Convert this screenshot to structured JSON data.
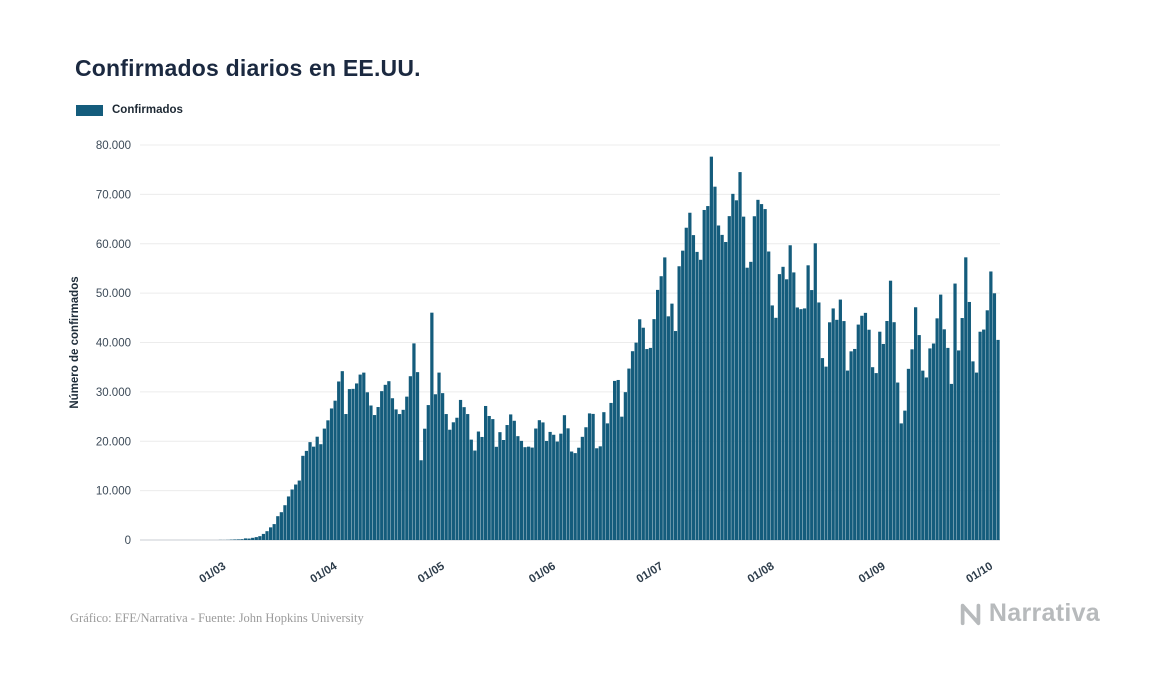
{
  "page": {
    "title": "Confirmados diarios en EE.UU.",
    "credit": "Gráfico: EFE/Narrativa - Fuente: John Hopkins University",
    "brand": "Narrativa"
  },
  "legend": {
    "label": "Confirmados"
  },
  "colors": {
    "bar": "#145c7c",
    "title": "#1b2940",
    "grid": "#ececec",
    "baseline": "#c9ced3",
    "axis": "#3c4a58",
    "credit": "#9b9b9b",
    "brand": "#b7babc"
  },
  "chart_data": {
    "type": "bar",
    "title": "Confirmados diarios en EE.UU.",
    "series_name": "Confirmados",
    "xlabel": "",
    "ylabel": "Número de confirmados",
    "x_start_date": "08/02/2020",
    "x_tick_labels": [
      "01/03",
      "01/04",
      "01/05",
      "01/06",
      "01/07",
      "01/08",
      "01/09",
      "01/10"
    ],
    "x_tick_indices": [
      22,
      53,
      83,
      114,
      144,
      175,
      206,
      236
    ],
    "y_ticks": [
      0,
      10000,
      20000,
      30000,
      40000,
      50000,
      60000,
      70000,
      80000
    ],
    "y_tick_labels": [
      "0",
      "10.000",
      "20.000",
      "30.000",
      "40.000",
      "50.000",
      "60.000",
      "70.000",
      "80.000"
    ],
    "ylim": [
      0,
      80000
    ],
    "grid": true,
    "legend_position": "top-left",
    "values": [
      0,
      0,
      0,
      0,
      0,
      0,
      0,
      0,
      0,
      0,
      0,
      0,
      0,
      0,
      0,
      0,
      0,
      0,
      0,
      0,
      0,
      0,
      24,
      19,
      34,
      77,
      111,
      129,
      162,
      326,
      294,
      441,
      583,
      778,
      1233,
      1789,
      2563,
      3223,
      4824,
      5632,
      7047,
      8821,
      10229,
      11236,
      12038,
      17050,
      18047,
      19821,
      18906,
      20921,
      19400,
      22562,
      24237,
      26641,
      28219,
      32105,
      34196,
      25513,
      30561,
      30613,
      31709,
      33502,
      33900,
      29916,
      27238,
      25306,
      26930,
      30148,
      31426,
      32165,
      28710,
      26448,
      25509,
      26366,
      29037,
      33172,
      39822,
      34000,
      16149,
      22541,
      27327,
      46042,
      29517,
      33906,
      29744,
      25509,
      22335,
      23841,
      24762,
      28369,
      26906,
      25508,
      20329,
      18117,
      21970,
      20869,
      27143,
      25115,
      24487,
      18873,
      21841,
      20254,
      23285,
      25434,
      24147,
      21030,
      20076,
      18798,
      18907,
      18721,
      22577,
      24266,
      23814,
      20058,
      21892,
      21313,
      19939,
      21540,
      25278,
      22617,
      17919,
      17598,
      18692,
      20894,
      22834,
      25641,
      25540,
      18578,
      18972,
      25890,
      23622,
      27762,
      32218,
      32411,
      24979,
      29945,
      34720,
      38237,
      39972,
      44702,
      42994,
      38673,
      38907,
      44734,
      50655,
      53426,
      57236,
      45300,
      47873,
      42320,
      55442,
      58601,
      63247,
      66281,
      61749,
      58349,
      56750,
      66842,
      67632,
      77638,
      71558,
      63698,
      61795,
      60355,
      65594,
      70106,
      68800,
      74511,
      65490,
      55148,
      56336,
      65570,
      68896,
      68032,
      67023,
      58429,
      47508,
      45001,
      53847,
      55327,
      52799,
      59692,
      54193,
      47094,
      46754,
      46906,
      55633,
      50620,
      60091,
      48109,
      36843,
      35112,
      44091,
      46901,
      44591,
      48693,
      44341,
      34312,
      38209,
      38692,
      43629,
      45414,
      46002,
      42587,
      34999,
      33805,
      42188,
      39706,
      44357,
      52518,
      44112,
      31891,
      23616,
      26204,
      34668,
      38619,
      47138,
      41505,
      34303,
      32919,
      38804,
      39798,
      44891,
      49702,
      42672,
      38907,
      31616,
      51937,
      38393,
      44954,
      57249,
      48210,
      36179,
      33904,
      42184,
      42620,
      46521,
      54386,
      49967,
      40529
    ]
  }
}
